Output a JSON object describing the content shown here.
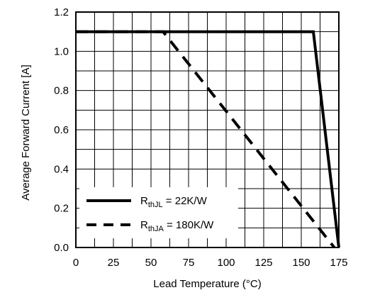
{
  "chart_data": {
    "type": "line",
    "title": "",
    "xlabel": "Lead Temperature (°C)",
    "ylabel": "Average Forward Current [A]",
    "xlim": [
      0,
      175
    ],
    "ylim": [
      0.0,
      1.2
    ],
    "x_ticks": [
      "0",
      "25",
      "50",
      "75",
      "100",
      "125",
      "150",
      "175"
    ],
    "y_ticks": [
      "0.0",
      "0.2",
      "0.4",
      "0.6",
      "0.8",
      "1.0",
      "1.2"
    ],
    "grid": true,
    "minor_grid_x_step": 12.5,
    "minor_grid_y_step": 0.1,
    "legend_position": "bottom-left",
    "series": [
      {
        "name_main": "R",
        "name_sub": "thJL",
        "name_rest": " = 22K/W",
        "style": "solid",
        "color": "#000000",
        "points": [
          [
            0,
            1.1
          ],
          [
            158,
            1.1
          ],
          [
            175,
            0.0
          ]
        ]
      },
      {
        "name_main": "R",
        "name_sub": "thJA",
        "name_rest": " = 180K/W",
        "style": "dashed",
        "color": "#000000",
        "points": [
          [
            0,
            1.1
          ],
          [
            58,
            1.1
          ],
          [
            172,
            0.0
          ]
        ]
      }
    ]
  }
}
